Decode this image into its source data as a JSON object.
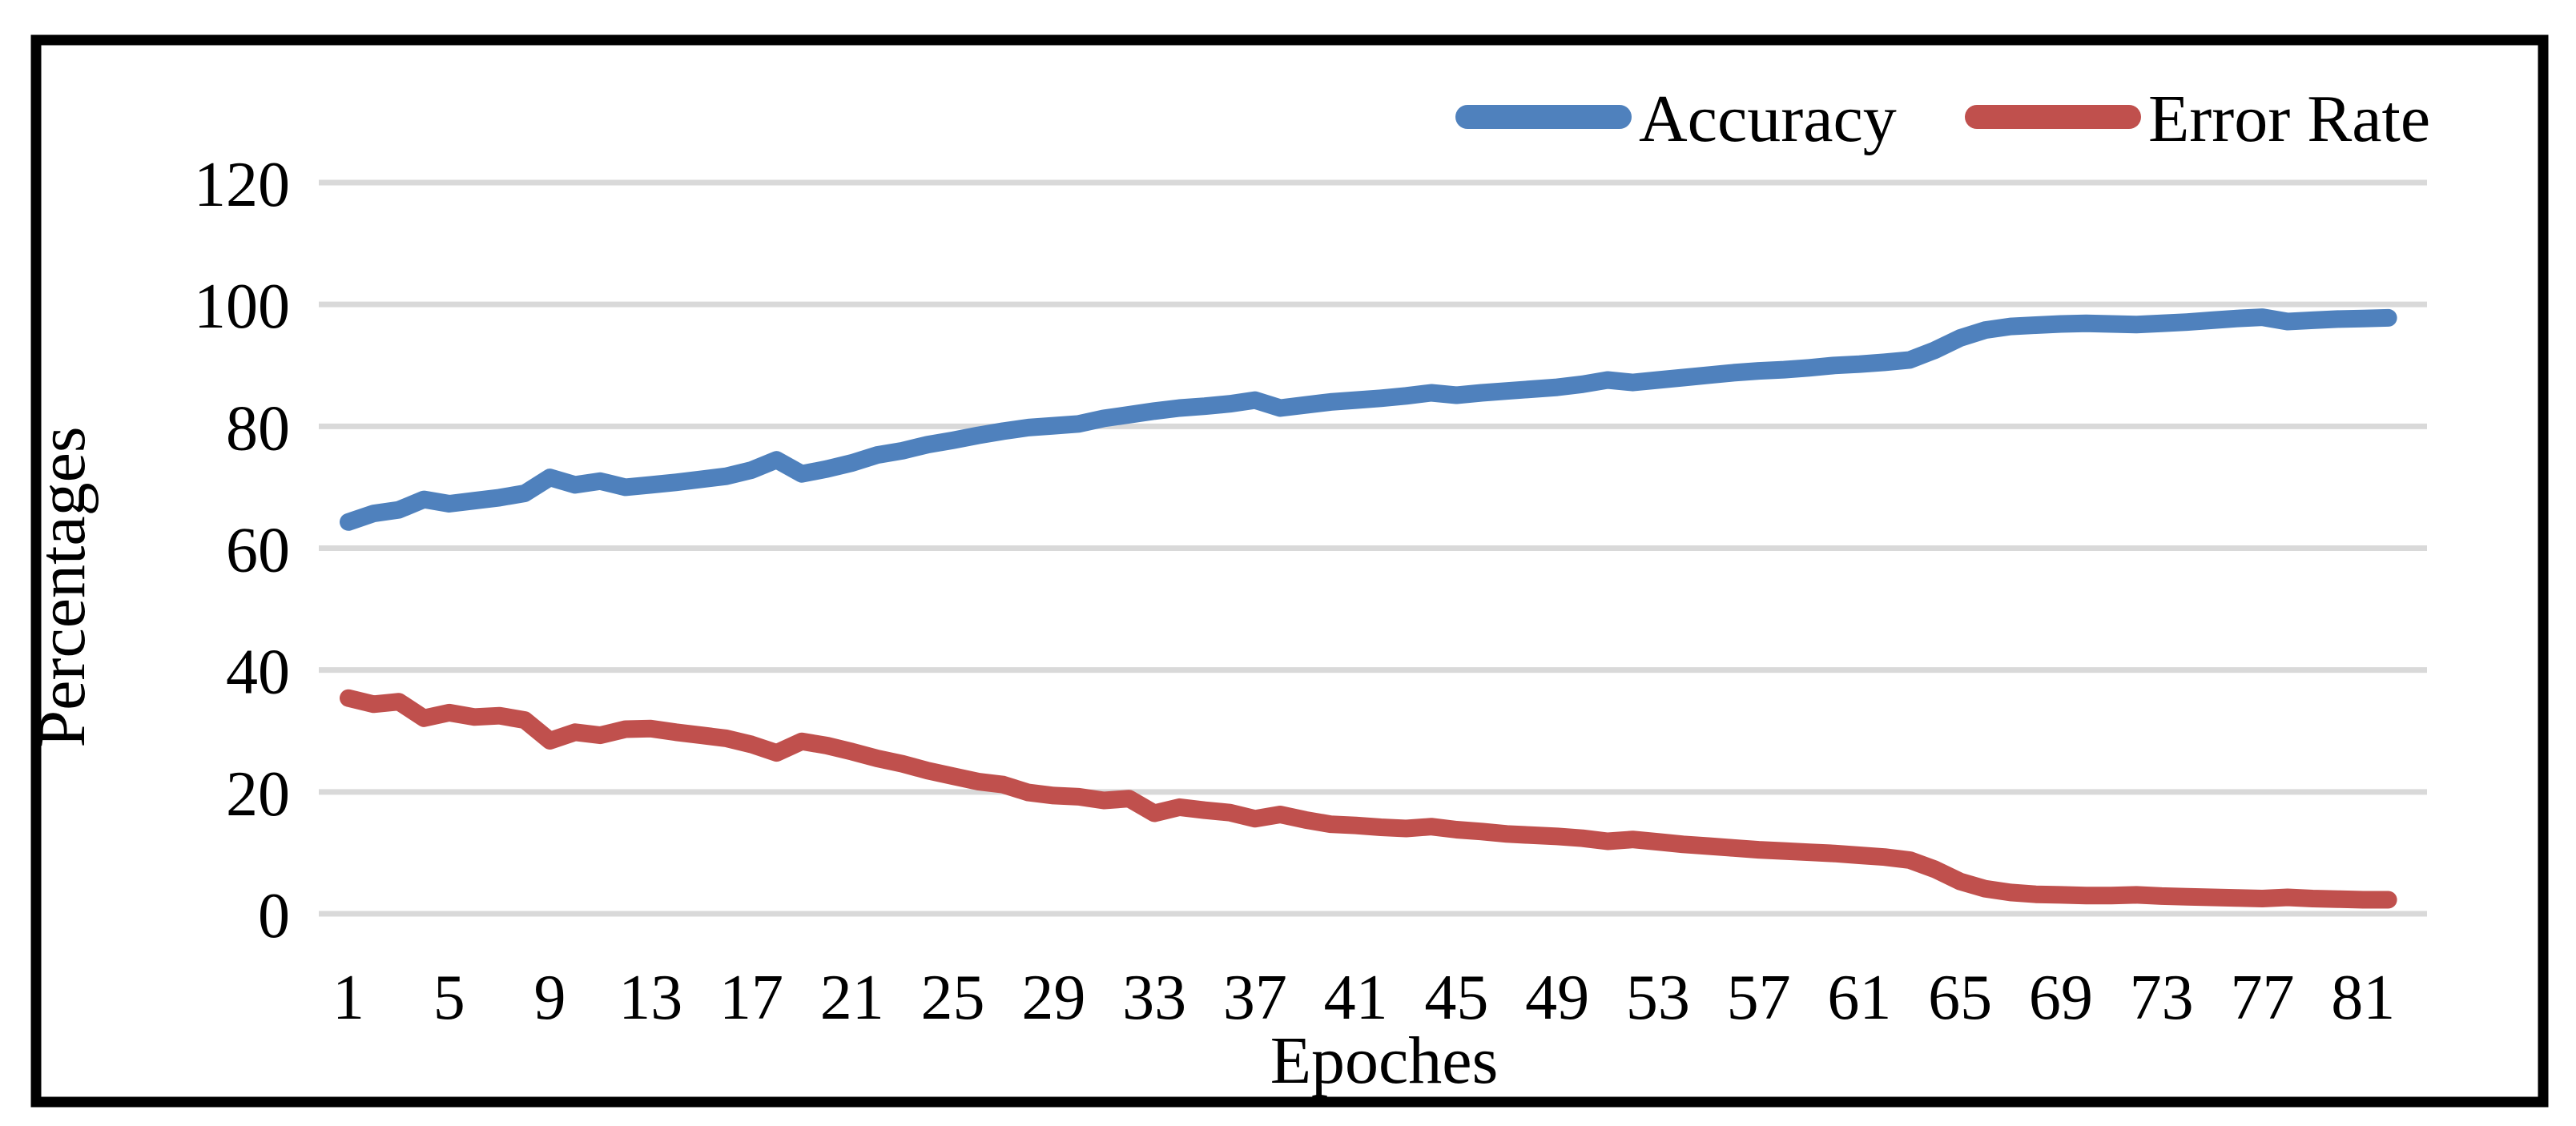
{
  "chart_data": {
    "type": "line",
    "title": "",
    "xlabel": "Epoches",
    "ylabel": "Percentages",
    "x_ticks": [
      1,
      5,
      9,
      13,
      17,
      21,
      25,
      29,
      33,
      37,
      41,
      45,
      49,
      53,
      57,
      61,
      65,
      69,
      73,
      77,
      81
    ],
    "y_ticks": [
      0,
      20,
      40,
      60,
      80,
      100,
      120
    ],
    "ylim": [
      0,
      120
    ],
    "xlim": [
      1,
      82
    ],
    "grid": true,
    "legend_position": "top-right",
    "x": [
      1,
      2,
      3,
      4,
      5,
      6,
      7,
      8,
      9,
      10,
      11,
      12,
      13,
      14,
      15,
      16,
      17,
      18,
      19,
      20,
      21,
      22,
      23,
      24,
      25,
      26,
      27,
      28,
      29,
      30,
      31,
      32,
      33,
      34,
      35,
      36,
      37,
      38,
      39,
      40,
      41,
      42,
      43,
      44,
      45,
      46,
      47,
      48,
      49,
      50,
      51,
      52,
      53,
      54,
      55,
      56,
      57,
      58,
      59,
      60,
      61,
      62,
      63,
      64,
      65,
      66,
      67,
      68,
      69,
      70,
      71,
      72,
      73,
      74,
      75,
      76,
      77,
      78,
      79,
      80,
      81,
      82
    ],
    "series": [
      {
        "name": "Accuracy",
        "color": "#4F81BD",
        "values": [
          64.3,
          65.7,
          66.3,
          68.0,
          67.3,
          67.8,
          68.3,
          69.0,
          71.6,
          70.4,
          71.0,
          70.0,
          70.4,
          70.8,
          71.3,
          71.8,
          72.8,
          74.5,
          72.2,
          73.0,
          74.0,
          75.3,
          76.0,
          77.0,
          77.7,
          78.5,
          79.2,
          79.8,
          80.1,
          80.4,
          81.3,
          81.9,
          82.5,
          83.0,
          83.3,
          83.7,
          84.3,
          83.0,
          83.5,
          84.0,
          84.3,
          84.6,
          85.0,
          85.5,
          85.1,
          85.5,
          85.8,
          86.1,
          86.4,
          86.9,
          87.6,
          87.2,
          87.6,
          88.0,
          88.4,
          88.8,
          89.1,
          89.3,
          89.6,
          90.0,
          90.2,
          90.5,
          90.9,
          92.5,
          94.5,
          95.8,
          96.4,
          96.6,
          96.8,
          96.9,
          96.8,
          96.7,
          96.9,
          97.1,
          97.4,
          97.7,
          97.9,
          97.2,
          97.4,
          97.6,
          97.7,
          97.8
        ]
      },
      {
        "name": "Error Rate",
        "color": "#C0504D",
        "values": [
          35.4,
          34.4,
          34.8,
          32.1,
          33.0,
          32.3,
          32.5,
          31.8,
          28.4,
          29.8,
          29.3,
          30.3,
          30.4,
          29.8,
          29.3,
          28.8,
          27.8,
          26.4,
          28.3,
          27.6,
          26.6,
          25.5,
          24.6,
          23.5,
          22.6,
          21.7,
          21.2,
          19.9,
          19.4,
          19.2,
          18.6,
          18.9,
          16.5,
          17.5,
          17.0,
          16.6,
          15.6,
          16.3,
          15.4,
          14.7,
          14.5,
          14.2,
          14.0,
          14.3,
          13.8,
          13.5,
          13.1,
          12.9,
          12.7,
          12.4,
          11.9,
          12.2,
          11.8,
          11.4,
          11.1,
          10.8,
          10.5,
          10.3,
          10.1,
          9.9,
          9.6,
          9.3,
          8.8,
          7.3,
          5.3,
          4.1,
          3.5,
          3.2,
          3.1,
          3.0,
          3.0,
          3.1,
          2.9,
          2.8,
          2.7,
          2.6,
          2.5,
          2.7,
          2.5,
          2.4,
          2.3,
          2.3
        ]
      }
    ]
  },
  "colors": {
    "background": "#FFFFFF",
    "border": "#000000",
    "gridline": "#D9D9D9",
    "text": "#000000",
    "accuracy": "#4F81BD",
    "error_rate": "#C0504D"
  }
}
